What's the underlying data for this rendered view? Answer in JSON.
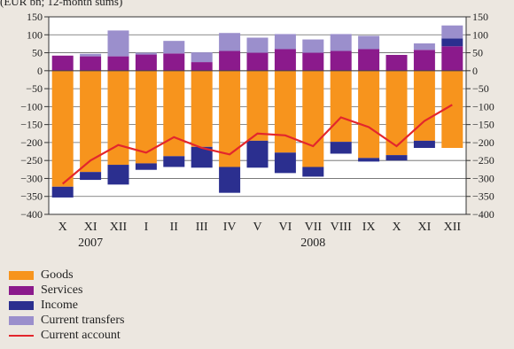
{
  "subtitle": "(EUR bn; 12-month sums)",
  "colors": {
    "goods": "#f7941d",
    "services": "#8b1a8c",
    "income": "#2b2f8f",
    "transfers": "#9b8fcc",
    "current_account": "#e3262c",
    "background": "#ece7e0"
  },
  "chart_data": {
    "type": "bar",
    "stacked": true,
    "categories": [
      "X",
      "XI",
      "XII",
      "I",
      "II",
      "III",
      "IV",
      "V",
      "VI",
      "VII",
      "VIII",
      "IX",
      "X",
      "XI",
      "XII"
    ],
    "year_labels": [
      {
        "label": "2007",
        "at_index": 1
      },
      {
        "label": "2008",
        "at_index": 9
      }
    ],
    "yticks": [
      150,
      100,
      50,
      0,
      -50,
      -100,
      -150,
      -200,
      -250,
      -300,
      -350,
      -400
    ],
    "ylim": [
      -400,
      150
    ],
    "series": [
      {
        "name": "Goods",
        "key": "goods",
        "values": [
          -323,
          -282,
          -262,
          -258,
          -238,
          -212,
          -268,
          -195,
          -228,
          -268,
          -198,
          -243,
          -235,
          -195,
          -215
        ]
      },
      {
        "name": "Services",
        "key": "services",
        "values": [
          42,
          40,
          40,
          45,
          48,
          24,
          55,
          50,
          60,
          50,
          55,
          60,
          44,
          58,
          68
        ]
      },
      {
        "name": "Income",
        "key": "income",
        "values": [
          -30,
          -22,
          -55,
          -18,
          -30,
          -58,
          -72,
          -75,
          -57,
          -27,
          -33,
          -10,
          -15,
          -20,
          22
        ]
      },
      {
        "name": "Current transfers",
        "key": "transfers",
        "values": [
          0,
          7,
          72,
          5,
          35,
          27,
          50,
          42,
          42,
          37,
          47,
          37,
          0,
          18,
          36
        ]
      },
      {
        "name": "Current account",
        "key": "current_account",
        "type": "line",
        "values": [
          -315,
          -250,
          -207,
          -228,
          -185,
          -215,
          -233,
          -175,
          -180,
          -210,
          -130,
          -157,
          -210,
          -140,
          -95
        ]
      }
    ],
    "legend_position": "bottom-left"
  }
}
